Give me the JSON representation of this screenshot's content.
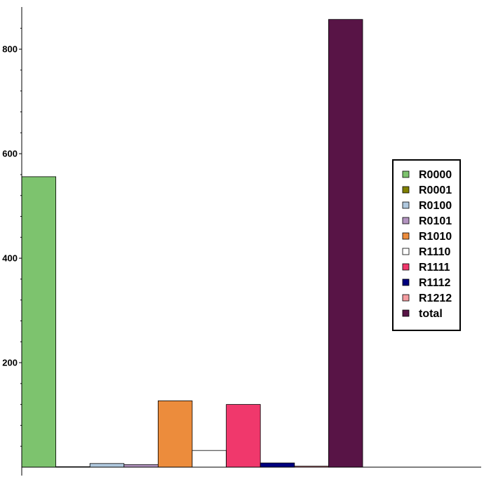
{
  "chart_data": {
    "type": "bar",
    "categories": [
      "R0000",
      "R0001",
      "R0100",
      "R0101",
      "R1010",
      "R1110",
      "R1111",
      "R1112",
      "R1212",
      "total"
    ],
    "values": [
      556,
      1,
      7,
      5,
      127,
      32,
      120,
      8,
      2,
      857
    ],
    "colors": [
      "#7dc36e",
      "#808000",
      "#afc8de",
      "#b394c0",
      "#ec8c3c",
      "#ffffff",
      "#f0386c",
      "#00007f",
      "#f49ca0",
      "#581446"
    ],
    "ylim": [
      0,
      870
    ],
    "yticks": [
      200,
      400,
      600,
      800
    ],
    "ytick_labels": [
      "200",
      "400",
      "600",
      "800"
    ],
    "title": "",
    "xlabel": "",
    "ylabel": "",
    "grid": false,
    "legend": {
      "position": "right",
      "entries": [
        "R0000",
        "R0001",
        "R0100",
        "R0101",
        "R1010",
        "R1110",
        "R1111",
        "R1112",
        "R1212",
        "total"
      ]
    }
  }
}
